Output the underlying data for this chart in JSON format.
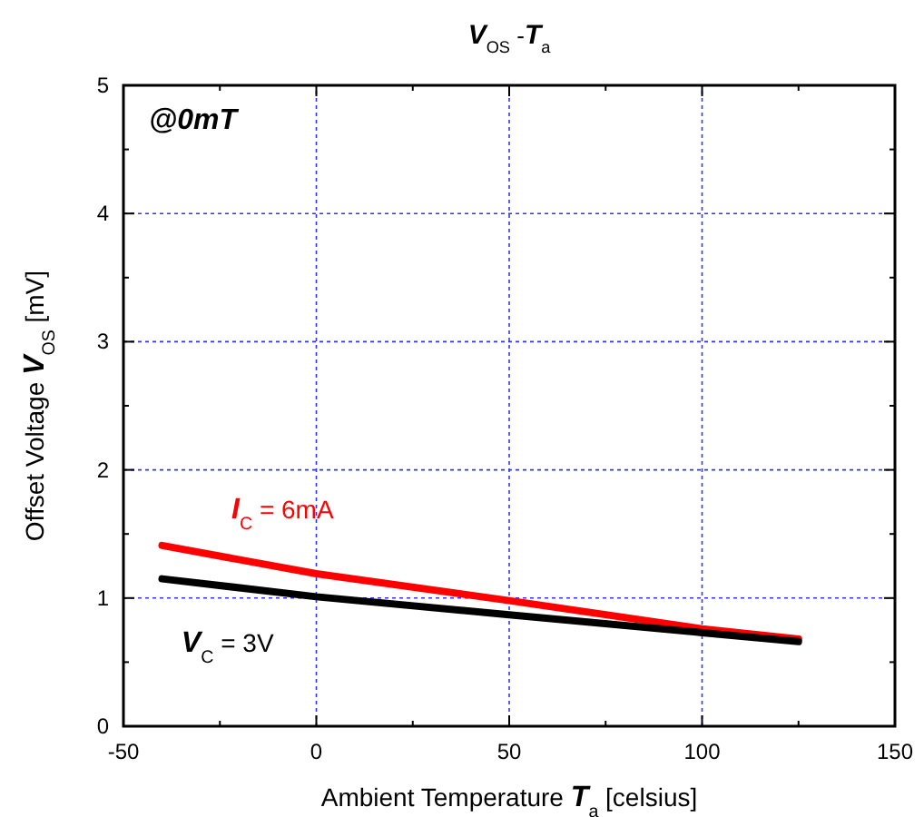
{
  "chart_data": {
    "type": "line",
    "title": "V$_{OS}$-T$_{a}$",
    "xlabel": "Ambient Temperature T$_{a}$ [celsius]",
    "ylabel": "Offset Voltage V$_{OS}$ [mV]",
    "xlim": [
      -50,
      150
    ],
    "ylim": [
      0,
      5
    ],
    "xticks": [
      -50,
      {
        "value": -25,
        "label": null
      },
      0,
      {
        "value": 25,
        "label": null
      },
      50,
      {
        "value": 75,
        "label": null
      },
      100,
      {
        "value": 125,
        "label": null
      },
      150
    ],
    "yticks": [
      0,
      {
        "value": 0.5,
        "label": null
      },
      1,
      {
        "value": 1.5,
        "label": null
      },
      2,
      {
        "value": 2.5,
        "label": null
      },
      3,
      {
        "value": 3.5,
        "label": null
      },
      4,
      {
        "value": 4.5,
        "label": null
      },
      5
    ],
    "grid": true,
    "line_style": "solid",
    "marker": "none",
    "x": [
      -40,
      0,
      50,
      100,
      125
    ],
    "series": [
      {
        "name": "I$_{C}$ = 6mA",
        "color": "#ff0000",
        "values": [
          1.41,
          1.19,
          0.98,
          0.76,
          0.68
        ]
      },
      {
        "name": "V$_{C}$ = 3V",
        "color": "#000000",
        "values": [
          1.15,
          1.01,
          0.87,
          0.73,
          0.66
        ]
      }
    ],
    "annotations": [
      "@0mT"
    ]
  }
}
